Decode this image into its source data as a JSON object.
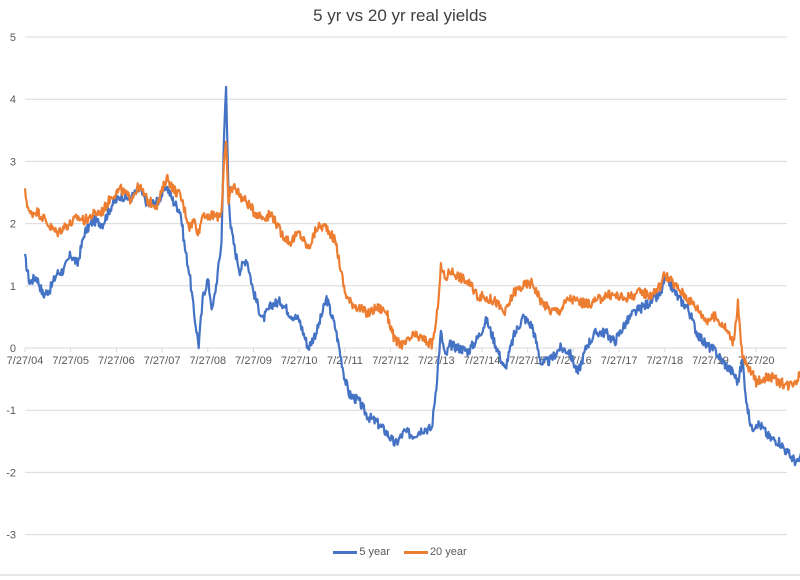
{
  "chart": {
    "title": "5 yr vs 20 yr real yields",
    "legend": [
      {
        "label": "5 year",
        "color": "#4472C4"
      },
      {
        "label": "20 year",
        "color": "#ED7D31"
      }
    ]
  },
  "chart_data": {
    "type": "line",
    "title": "5 yr vs 20 yr real yields",
    "xlabel": "",
    "ylabel": "",
    "ylim": [
      -3,
      5
    ],
    "yticks": [
      5,
      4,
      3,
      2,
      1,
      0,
      -1,
      -2,
      -3
    ],
    "xticks": [
      "7/27/04",
      "7/27/05",
      "7/27/06",
      "7/27/07",
      "7/27/08",
      "7/27/09",
      "7/27/10",
      "7/27/11",
      "7/27/12",
      "7/27/13",
      "7/27/14",
      "7/27/15",
      "7/27/16",
      "7/27/17",
      "7/27/18",
      "7/27/19",
      "7/27/20"
    ],
    "grid": true,
    "legend_position": "bottom",
    "x_unit": "years since 7/27/04",
    "x": [
      0.0,
      0.1,
      0.25,
      0.4,
      0.55,
      0.7,
      0.85,
      1.0,
      1.15,
      1.3,
      1.5,
      1.7,
      1.9,
      2.1,
      2.3,
      2.5,
      2.7,
      2.9,
      3.1,
      3.25,
      3.4,
      3.5,
      3.6,
      3.7,
      3.8,
      3.9,
      4.0,
      4.1,
      4.2,
      4.3,
      4.35,
      4.4,
      4.45,
      4.5,
      4.6,
      4.7,
      4.85,
      5.0,
      5.2,
      5.4,
      5.6,
      5.8,
      6.0,
      6.2,
      6.4,
      6.6,
      6.8,
      7.0,
      7.1,
      7.3,
      7.5,
      7.7,
      7.9,
      8.1,
      8.3,
      8.5,
      8.7,
      8.9,
      9.0,
      9.1,
      9.2,
      9.3,
      9.5,
      9.7,
      9.9,
      10.1,
      10.3,
      10.5,
      10.7,
      10.9,
      11.1,
      11.3,
      11.5,
      11.7,
      11.9,
      12.1,
      12.3,
      12.5,
      12.7,
      12.9,
      13.1,
      13.3,
      13.5,
      13.7,
      13.9,
      14.0,
      14.1,
      14.3,
      14.5,
      14.7,
      14.9,
      15.1,
      15.3,
      15.5,
      15.6,
      15.7,
      15.8,
      15.9,
      16.0,
      16.1,
      16.3,
      16.5,
      16.7,
      16.9,
      17.1,
      17.3,
      17.5,
      17.6,
      17.66
    ],
    "series": [
      {
        "name": "5 year",
        "color": "#4472C4",
        "values": [
          1.45,
          1.05,
          1.15,
          0.85,
          0.95,
          1.2,
          1.25,
          1.5,
          1.35,
          1.85,
          2.05,
          2.0,
          2.3,
          2.45,
          2.4,
          2.55,
          2.3,
          2.35,
          2.6,
          2.35,
          2.2,
          1.6,
          1.2,
          0.55,
          0.05,
          0.85,
          1.1,
          0.6,
          1.1,
          1.7,
          3.3,
          4.2,
          2.6,
          1.95,
          1.55,
          1.25,
          1.45,
          0.9,
          0.45,
          0.7,
          0.75,
          0.55,
          0.45,
          0.0,
          0.3,
          0.8,
          0.3,
          -0.5,
          -0.75,
          -0.85,
          -1.1,
          -1.2,
          -1.35,
          -1.55,
          -1.35,
          -1.4,
          -1.3,
          -1.3,
          -0.6,
          0.25,
          -0.15,
          0.05,
          0.0,
          -0.05,
          0.15,
          0.45,
          0.05,
          -0.35,
          0.2,
          0.5,
          0.35,
          -0.25,
          -0.2,
          0.0,
          -0.05,
          -0.4,
          0.05,
          0.25,
          0.25,
          0.1,
          0.35,
          0.55,
          0.65,
          0.75,
          0.85,
          1.1,
          1.05,
          0.8,
          0.65,
          0.25,
          0.05,
          -0.05,
          -0.25,
          -0.4,
          -0.55,
          -0.2,
          -0.95,
          -1.3,
          -1.2,
          -1.25,
          -1.45,
          -1.5,
          -1.7,
          -1.85,
          -1.6,
          -1.65,
          -1.6,
          -1.7,
          -1.65
        ]
      },
      {
        "name": "20 year",
        "color": "#ED7D31",
        "values": [
          2.5,
          2.15,
          2.2,
          2.1,
          1.95,
          1.85,
          1.95,
          2.0,
          2.1,
          2.05,
          2.15,
          2.2,
          2.45,
          2.55,
          2.4,
          2.6,
          2.35,
          2.3,
          2.75,
          2.55,
          2.45,
          2.2,
          1.95,
          2.05,
          1.85,
          2.2,
          2.05,
          2.15,
          2.1,
          2.2,
          2.95,
          3.3,
          2.3,
          2.55,
          2.6,
          2.45,
          2.35,
          2.2,
          2.1,
          2.15,
          1.85,
          1.7,
          1.85,
          1.6,
          1.95,
          1.95,
          1.7,
          0.9,
          0.75,
          0.65,
          0.55,
          0.65,
          0.6,
          0.1,
          0.05,
          0.2,
          0.15,
          0.05,
          0.4,
          1.3,
          1.1,
          1.25,
          1.15,
          1.05,
          0.85,
          0.8,
          0.75,
          0.55,
          0.9,
          1.0,
          1.05,
          0.75,
          0.6,
          0.6,
          0.8,
          0.75,
          0.7,
          0.75,
          0.85,
          0.85,
          0.8,
          0.85,
          0.9,
          0.85,
          1.0,
          1.2,
          1.1,
          0.95,
          0.8,
          0.65,
          0.45,
          0.5,
          0.35,
          0.1,
          0.7,
          -0.15,
          -0.3,
          -0.4,
          -0.55,
          -0.5,
          -0.45,
          -0.55,
          -0.6,
          -0.5,
          -0.15,
          -0.05,
          -0.1,
          -0.1,
          -0.1
        ]
      }
    ]
  }
}
